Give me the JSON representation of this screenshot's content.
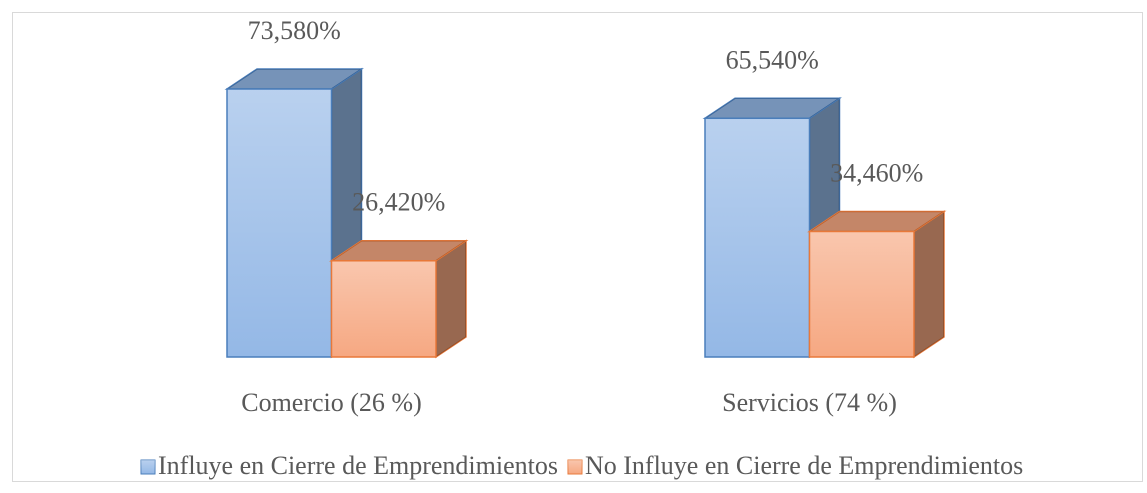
{
  "chart_data": {
    "type": "bar3d",
    "categories": [
      "Comercio (26 %)",
      "Servicios (74 %)"
    ],
    "series": [
      {
        "name": "Influye en Cierre de Emprendimientos",
        "color": "#94b8e6",
        "border_color": "#4a7ebb",
        "values": [
          73.58,
          65.54
        ],
        "value_labels": [
          "73,580%",
          "65,540%"
        ]
      },
      {
        "name": "No Influye en Cierre de Emprendimientos",
        "color": "#f6a882",
        "border_color": "#e8793a",
        "values": [
          26.42,
          34.46
        ],
        "value_labels": [
          "26,420%",
          "34,460%"
        ]
      }
    ],
    "legend": "bottom"
  }
}
